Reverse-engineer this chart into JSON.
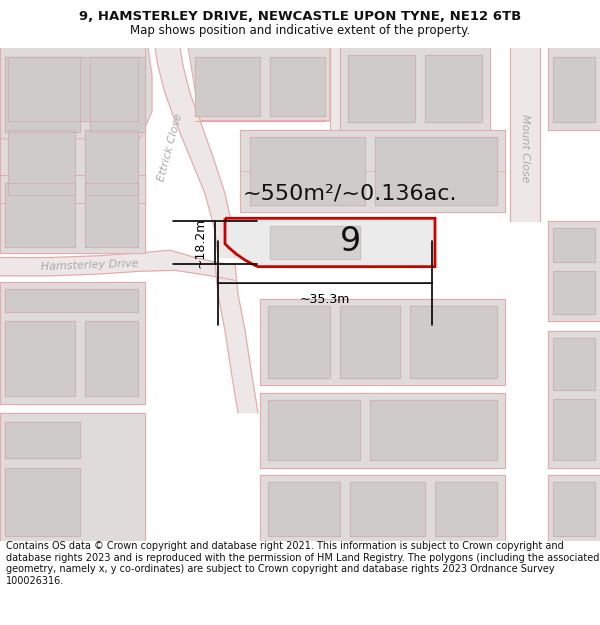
{
  "title_line1": "9, HAMSTERLEY DRIVE, NEWCASTLE UPON TYNE, NE12 6TB",
  "title_line2": "Map shows position and indicative extent of the property.",
  "footer_text": "Contains OS data © Crown copyright and database right 2021. This information is subject to Crown copyright and database rights 2023 and is reproduced with the permission of HM Land Registry. The polygons (including the associated geometry, namely x, y co-ordinates) are subject to Crown copyright and database rights 2023 Ordnance Survey 100026316.",
  "area_label": "~550m²/~0.136ac.",
  "number_label": "9",
  "dim_width": "~35.3m",
  "dim_height": "~18.2m",
  "map_bg": "#f5f0f0",
  "road_color": "#e8a8a8",
  "block_fill": "#e0dbdb",
  "block_stroke": "#d4a8a8",
  "building_fill": "#d0cbcb",
  "road_fill": "#f5f0f0",
  "property_fill": "#ebebeb",
  "property_outline": "#cc0000",
  "dim_color": "#111111",
  "title_color": "#111111",
  "label_color": "#aaaaaa",
  "title_fontsize": 9.5,
  "subtitle_fontsize": 8.5,
  "footer_fontsize": 7.0,
  "area_fontsize": 16,
  "number_fontsize": 24,
  "dim_fontsize": 9
}
